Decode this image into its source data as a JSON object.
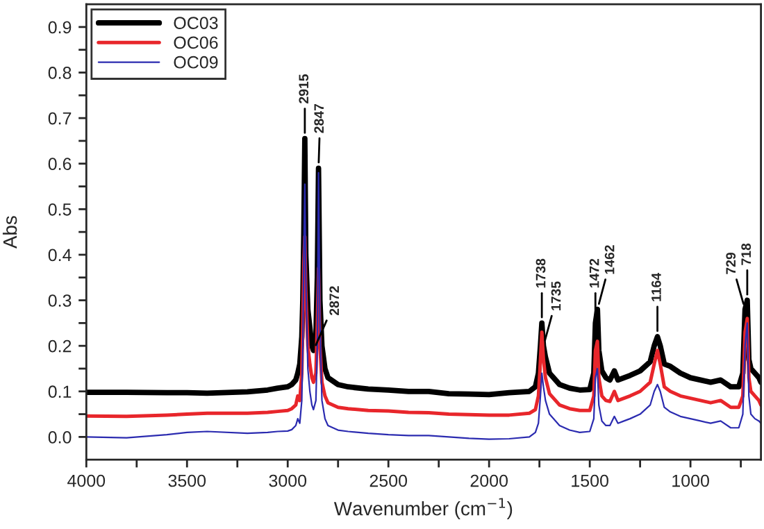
{
  "chart_data": {
    "type": "line",
    "xlabel": "Wavenumber (cm$^{−1}$)",
    "ylabel": "Abs",
    "x": [
      4000,
      3800,
      3600,
      3500,
      3400,
      3200,
      3100,
      3050,
      3000,
      2980,
      2960,
      2950,
      2940,
      2930,
      2925,
      2920,
      2915,
      2910,
      2900,
      2890,
      2880,
      2872,
      2860,
      2853,
      2847,
      2840,
      2830,
      2815,
      2800,
      2750,
      2700,
      2600,
      2500,
      2400,
      2300,
      2200,
      2100,
      2000,
      1900,
      1800,
      1770,
      1755,
      1745,
      1738,
      1730,
      1720,
      1700,
      1650,
      1600,
      1550,
      1500,
      1480,
      1472,
      1462,
      1455,
      1440,
      1420,
      1400,
      1378,
      1360,
      1330,
      1300,
      1250,
      1200,
      1180,
      1164,
      1150,
      1130,
      1100,
      1050,
      1000,
      950,
      900,
      850,
      800,
      760,
      740,
      729,
      718,
      710,
      700,
      680,
      660,
      650
    ],
    "series": [
      {
        "name": "OC03",
        "color": "#000000",
        "values": [
          0.098,
          0.098,
          0.097,
          0.097,
          0.096,
          0.099,
          0.103,
          0.107,
          0.11,
          0.115,
          0.125,
          0.14,
          0.16,
          0.22,
          0.3,
          0.45,
          0.655,
          0.4,
          0.28,
          0.24,
          0.2,
          0.19,
          0.22,
          0.35,
          0.59,
          0.3,
          0.2,
          0.15,
          0.13,
          0.115,
          0.11,
          0.105,
          0.103,
          0.1,
          0.1,
          0.095,
          0.094,
          0.093,
          0.097,
          0.1,
          0.11,
          0.14,
          0.2,
          0.25,
          0.2,
          0.175,
          0.14,
          0.115,
          0.107,
          0.103,
          0.104,
          0.14,
          0.25,
          0.28,
          0.19,
          0.145,
          0.13,
          0.125,
          0.145,
          0.125,
          0.13,
          0.135,
          0.145,
          0.165,
          0.2,
          0.22,
          0.2,
          0.16,
          0.155,
          0.14,
          0.13,
          0.125,
          0.12,
          0.125,
          0.11,
          0.11,
          0.14,
          0.28,
          0.3,
          0.17,
          0.15,
          0.14,
          0.13,
          0.12
        ]
      },
      {
        "name": "OC06",
        "color": "#e8262b",
        "values": [
          0.046,
          0.045,
          0.048,
          0.05,
          0.052,
          0.052,
          0.054,
          0.056,
          0.058,
          0.062,
          0.07,
          0.09,
          0.08,
          0.14,
          0.25,
          0.38,
          0.44,
          0.32,
          0.2,
          0.16,
          0.13,
          0.12,
          0.14,
          0.25,
          0.37,
          0.2,
          0.12,
          0.09,
          0.075,
          0.065,
          0.062,
          0.058,
          0.057,
          0.054,
          0.053,
          0.05,
          0.049,
          0.048,
          0.048,
          0.052,
          0.06,
          0.09,
          0.17,
          0.23,
          0.17,
          0.13,
          0.095,
          0.07,
          0.062,
          0.058,
          0.058,
          0.09,
          0.19,
          0.21,
          0.13,
          0.09,
          0.08,
          0.078,
          0.1,
          0.08,
          0.085,
          0.09,
          0.1,
          0.12,
          0.16,
          0.19,
          0.16,
          0.11,
          0.1,
          0.09,
          0.085,
          0.08,
          0.075,
          0.08,
          0.065,
          0.065,
          0.09,
          0.23,
          0.26,
          0.13,
          0.1,
          0.09,
          0.08,
          0.07
        ]
      },
      {
        "name": "OC09",
        "color": "#2b2bb0",
        "values": [
          0.0,
          -0.002,
          0.005,
          0.01,
          0.012,
          0.008,
          0.01,
          0.012,
          0.013,
          0.016,
          0.025,
          0.04,
          0.03,
          0.08,
          0.2,
          0.4,
          0.555,
          0.35,
          0.15,
          0.1,
          0.07,
          0.06,
          0.08,
          0.2,
          0.58,
          0.25,
          0.08,
          0.04,
          0.025,
          0.015,
          0.012,
          0.008,
          0.005,
          0.003,
          0.003,
          0.0,
          -0.003,
          -0.005,
          -0.004,
          0.0,
          0.01,
          0.03,
          0.09,
          0.14,
          0.11,
          0.08,
          0.05,
          0.025,
          0.015,
          0.01,
          0.012,
          0.04,
          0.13,
          0.15,
          0.07,
          0.035,
          0.025,
          0.025,
          0.045,
          0.03,
          0.035,
          0.04,
          0.05,
          0.07,
          0.1,
          0.115,
          0.1,
          0.065,
          0.055,
          0.045,
          0.04,
          0.035,
          0.03,
          0.035,
          0.02,
          0.02,
          0.05,
          0.2,
          0.25,
          0.09,
          0.05,
          0.04,
          0.035,
          0.03
        ]
      }
    ],
    "xlim": [
      4000,
      650
    ],
    "xticks": [
      4000,
      {
        "value": 3750,
        "label": null
      },
      3500,
      {
        "value": 3250,
        "label": null
      },
      3000,
      {
        "value": 2750,
        "label": null
      },
      2500,
      {
        "value": 2250,
        "label": null
      },
      2000,
      {
        "value": 1750,
        "label": null
      },
      1500,
      {
        "value": 1250,
        "label": null
      },
      1000,
      {
        "value": 750,
        "label": null
      }
    ],
    "ylim": [
      -0.05,
      0.95
    ],
    "yticks": [
      {
        "value": 0,
        "label": "0.0"
      },
      {
        "value": 0.05,
        "label": null
      },
      0.1,
      {
        "value": 0.15,
        "label": null
      },
      0.2,
      {
        "value": 0.25,
        "label": null
      },
      0.3,
      {
        "value": 0.35,
        "label": null
      },
      0.4,
      {
        "value": 0.45,
        "label": null
      },
      0.5,
      {
        "value": 0.55,
        "label": null
      },
      0.6,
      {
        "value": 0.65,
        "label": null
      },
      0.7,
      {
        "value": 0.75,
        "label": null
      },
      0.8,
      {
        "value": 0.85,
        "label": null
      },
      0.9
    ],
    "annotations": [
      {
        "text": "2915",
        "x": 2915,
        "y": 0.655
      },
      {
        "text": "2847",
        "x": 2847,
        "y": 0.59
      },
      {
        "text": "2872",
        "x": 2872,
        "y": 0.19
      },
      {
        "text": "1738",
        "x": 1738,
        "y": 0.25
      },
      {
        "text": "1735",
        "x": 1730,
        "y": 0.2
      },
      {
        "text": "1472",
        "x": 1472,
        "y": 0.25
      },
      {
        "text": "1462",
        "x": 1462,
        "y": 0.28
      },
      {
        "text": "1164",
        "x": 1164,
        "y": 0.22
      },
      {
        "text": "718",
        "x": 718,
        "y": 0.3
      },
      {
        "text": "729",
        "x": 729,
        "y": 0.28
      }
    ],
    "legend": "top left",
    "grid": false
  }
}
